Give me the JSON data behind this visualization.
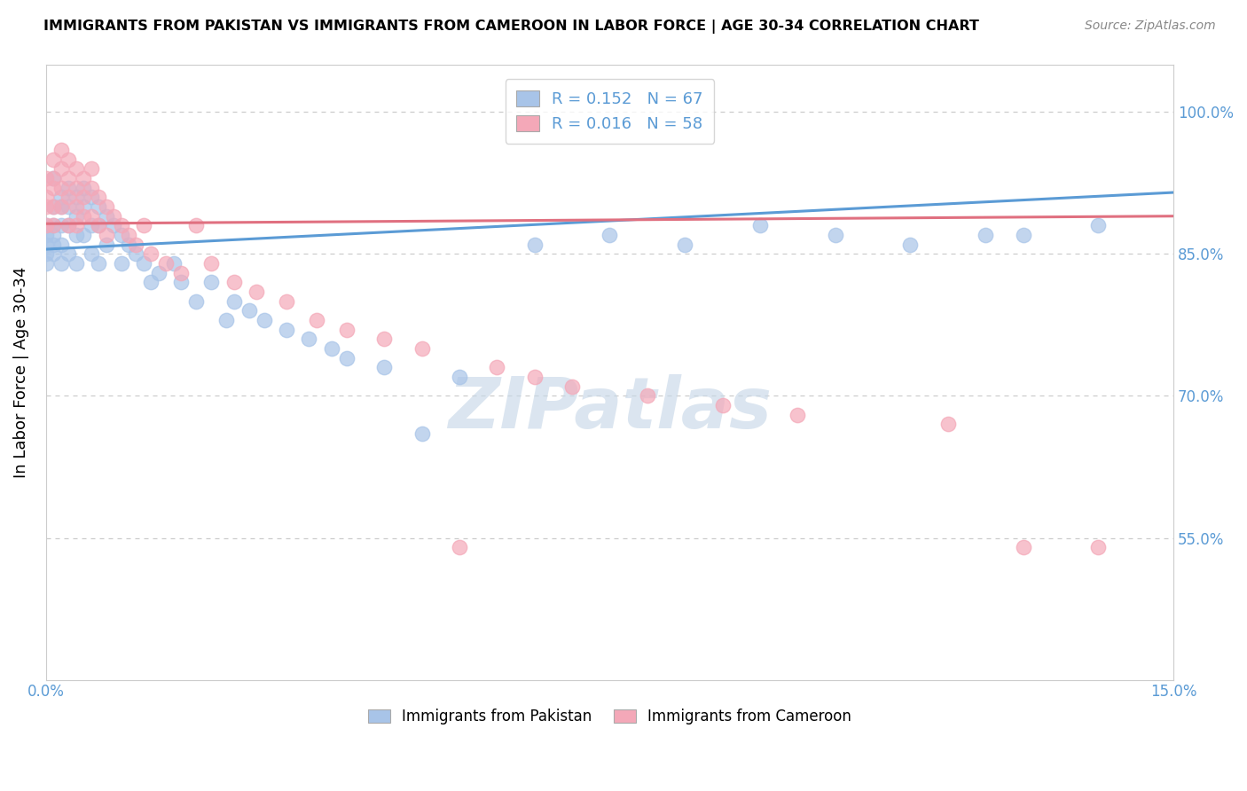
{
  "title": "IMMIGRANTS FROM PAKISTAN VS IMMIGRANTS FROM CAMEROON IN LABOR FORCE | AGE 30-34 CORRELATION CHART",
  "source": "Source: ZipAtlas.com",
  "ylabel": "In Labor Force | Age 30-34",
  "xlim": [
    0.0,
    0.15
  ],
  "ylim": [
    0.4,
    1.05
  ],
  "pakistan_color": "#a8c4e8",
  "cameroon_color": "#f4a8b8",
  "pakistan_line_color": "#5b9bd5",
  "cameroon_line_color": "#e07080",
  "pakistan_R": 0.152,
  "pakistan_N": 67,
  "cameroon_R": 0.016,
  "cameroon_N": 58,
  "watermark_text": "ZIPatlas",
  "pak_trend_x0": 0.0,
  "pak_trend_y0": 0.855,
  "pak_trend_x1": 0.15,
  "pak_trend_y1": 0.915,
  "cam_trend_x0": 0.0,
  "cam_trend_y0": 0.882,
  "cam_trend_x1": 0.15,
  "cam_trend_y1": 0.89,
  "pakistan_scatter_x": [
    0.0,
    0.0,
    0.0,
    0.0,
    0.0,
    0.001,
    0.001,
    0.001,
    0.001,
    0.001,
    0.001,
    0.002,
    0.002,
    0.002,
    0.002,
    0.002,
    0.003,
    0.003,
    0.003,
    0.003,
    0.004,
    0.004,
    0.004,
    0.004,
    0.005,
    0.005,
    0.005,
    0.006,
    0.006,
    0.006,
    0.007,
    0.007,
    0.007,
    0.008,
    0.008,
    0.009,
    0.01,
    0.01,
    0.011,
    0.012,
    0.013,
    0.014,
    0.015,
    0.017,
    0.018,
    0.02,
    0.022,
    0.024,
    0.025,
    0.027,
    0.029,
    0.032,
    0.035,
    0.038,
    0.04,
    0.045,
    0.05,
    0.055,
    0.065,
    0.075,
    0.085,
    0.095,
    0.105,
    0.115,
    0.125,
    0.13,
    0.14
  ],
  "pakistan_scatter_y": [
    0.88,
    0.87,
    0.86,
    0.85,
    0.84,
    0.93,
    0.9,
    0.88,
    0.87,
    0.86,
    0.85,
    0.91,
    0.9,
    0.88,
    0.86,
    0.84,
    0.92,
    0.9,
    0.88,
    0.85,
    0.91,
    0.89,
    0.87,
    0.84,
    0.92,
    0.9,
    0.87,
    0.91,
    0.88,
    0.85,
    0.9,
    0.88,
    0.84,
    0.89,
    0.86,
    0.88,
    0.87,
    0.84,
    0.86,
    0.85,
    0.84,
    0.82,
    0.83,
    0.84,
    0.82,
    0.8,
    0.82,
    0.78,
    0.8,
    0.79,
    0.78,
    0.77,
    0.76,
    0.75,
    0.74,
    0.73,
    0.66,
    0.72,
    0.86,
    0.87,
    0.86,
    0.88,
    0.87,
    0.86,
    0.87,
    0.87,
    0.88
  ],
  "cameroon_scatter_x": [
    0.0,
    0.0,
    0.0,
    0.0,
    0.001,
    0.001,
    0.001,
    0.001,
    0.001,
    0.002,
    0.002,
    0.002,
    0.002,
    0.003,
    0.003,
    0.003,
    0.003,
    0.004,
    0.004,
    0.004,
    0.004,
    0.005,
    0.005,
    0.005,
    0.006,
    0.006,
    0.006,
    0.007,
    0.007,
    0.008,
    0.008,
    0.009,
    0.01,
    0.011,
    0.012,
    0.013,
    0.014,
    0.016,
    0.018,
    0.02,
    0.022,
    0.025,
    0.028,
    0.032,
    0.036,
    0.04,
    0.045,
    0.05,
    0.055,
    0.06,
    0.065,
    0.07,
    0.08,
    0.09,
    0.1,
    0.12,
    0.13,
    0.14
  ],
  "cameroon_scatter_y": [
    0.93,
    0.91,
    0.9,
    0.88,
    0.95,
    0.93,
    0.92,
    0.9,
    0.88,
    0.96,
    0.94,
    0.92,
    0.9,
    0.95,
    0.93,
    0.91,
    0.88,
    0.94,
    0.92,
    0.9,
    0.88,
    0.93,
    0.91,
    0.89,
    0.94,
    0.92,
    0.89,
    0.91,
    0.88,
    0.9,
    0.87,
    0.89,
    0.88,
    0.87,
    0.86,
    0.88,
    0.85,
    0.84,
    0.83,
    0.88,
    0.84,
    0.82,
    0.81,
    0.8,
    0.78,
    0.77,
    0.76,
    0.75,
    0.54,
    0.73,
    0.72,
    0.71,
    0.7,
    0.69,
    0.68,
    0.67,
    0.54,
    0.54
  ]
}
